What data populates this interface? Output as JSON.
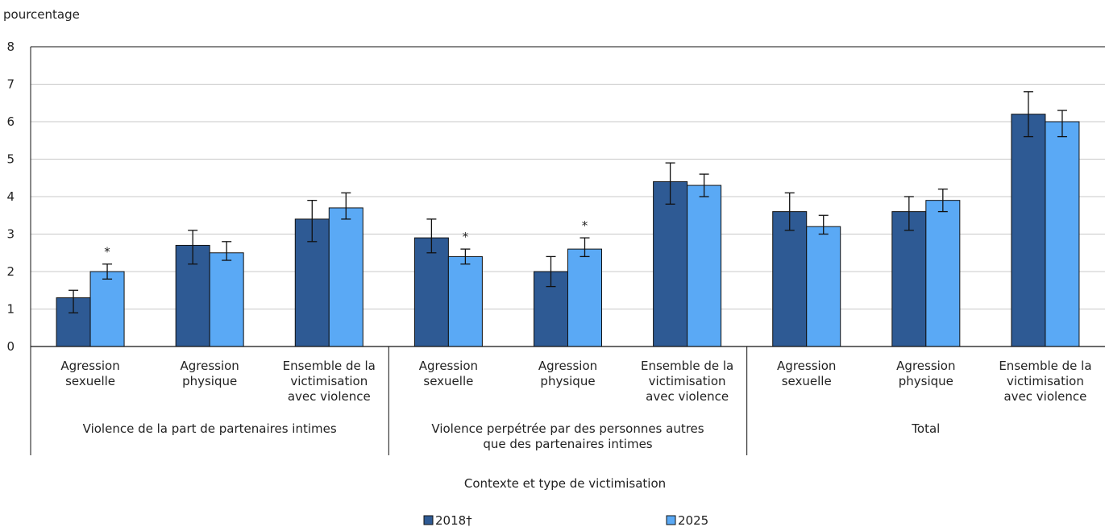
{
  "chart_data": {
    "type": "bar",
    "ylabel": "pourcentage",
    "xlabel": "Contexte et type de victimisation",
    "ylim": [
      0,
      8
    ],
    "yticks": [
      0,
      1,
      2,
      3,
      4,
      5,
      6,
      7,
      8
    ],
    "grid": true,
    "legend_position": "bottom",
    "groups": [
      {
        "label": "Violence de la part de partenaires intimes",
        "categories": [
          "Agression sexuelle",
          "Agression physique",
          "Ensemble de la victimisation avec violence"
        ]
      },
      {
        "label": "Violence perpétrée par des personnes autres que des partenaires intimes",
        "categories": [
          "Agression sexuelle",
          "Agression physique",
          "Ensemble de la victimisation avec violence"
        ]
      },
      {
        "label": "Total",
        "categories": [
          "Agression sexuelle",
          "Agression physique",
          "Ensemble de la victimisation avec violence"
        ]
      }
    ],
    "series": [
      {
        "name": "2018†",
        "color": "#2e5a94",
        "values": [
          1.3,
          2.7,
          3.4,
          2.9,
          2.0,
          4.4,
          3.6,
          3.6,
          6.2
        ],
        "err_low": [
          0.9,
          2.2,
          2.8,
          2.5,
          1.6,
          3.8,
          3.1,
          3.1,
          5.6
        ],
        "err_high": [
          1.5,
          3.1,
          3.9,
          3.4,
          2.4,
          4.9,
          4.1,
          4.0,
          6.8
        ],
        "significant": [
          false,
          false,
          false,
          false,
          false,
          false,
          false,
          false,
          false
        ]
      },
      {
        "name": "2025",
        "color": "#5aa9f5",
        "values": [
          2.0,
          2.5,
          3.7,
          2.4,
          2.6,
          4.3,
          3.2,
          3.9,
          6.0
        ],
        "err_low": [
          1.8,
          2.3,
          3.4,
          2.2,
          2.4,
          4.0,
          3.0,
          3.6,
          5.6
        ],
        "err_high": [
          2.2,
          2.8,
          4.1,
          2.6,
          2.9,
          4.6,
          3.5,
          4.2,
          6.3
        ],
        "significant": [
          true,
          false,
          false,
          true,
          true,
          false,
          false,
          false,
          false
        ]
      }
    ],
    "significance_marker": "*"
  }
}
